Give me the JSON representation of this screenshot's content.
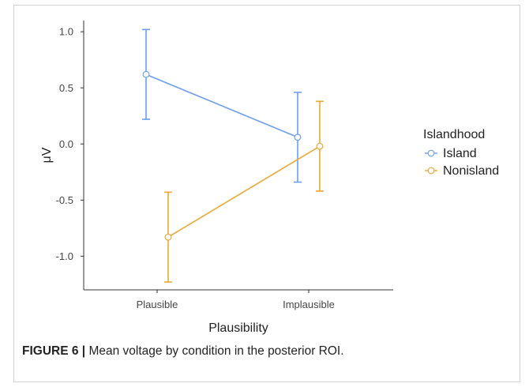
{
  "caption": {
    "label": "FIGURE 6 |",
    "text": " Mean voltage by condition in the posterior ROI."
  },
  "chart_data": {
    "type": "line",
    "xlabel": "Plausibility",
    "ylabel": "μV",
    "categories": [
      "Plausible",
      "Implausible"
    ],
    "ylim": [
      -1.3,
      1.1
    ],
    "yticks": [
      "1.0",
      "0.5",
      "0.0",
      "-0.5",
      "-1.0"
    ],
    "grid": false,
    "legend": {
      "title": "Islandhood",
      "position": "right"
    },
    "series": [
      {
        "name": "Island",
        "color": "#6d9eeb",
        "values": [
          0.62,
          0.06
        ],
        "lower": [
          0.22,
          -0.34
        ],
        "upper": [
          1.02,
          0.46
        ]
      },
      {
        "name": "Nonisland",
        "color": "#e8a838",
        "values": [
          -0.83,
          -0.02
        ],
        "lower": [
          -1.23,
          -0.42
        ],
        "upper": [
          -0.43,
          0.38
        ]
      }
    ]
  }
}
